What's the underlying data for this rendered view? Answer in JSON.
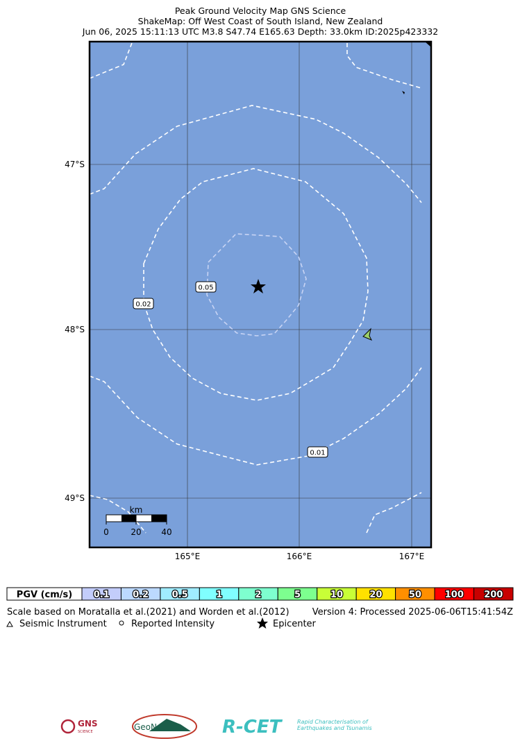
{
  "title": {
    "line1": "Peak Ground Velocity Map GNS Science",
    "line2": "ShakeMap: Off West Coast of South Island, New Zealand",
    "line3": "Jun 06, 2025 15:11:13 UTC M3.8 S47.74 E165.63 Depth: 33.0km ID:2025p423332"
  },
  "map": {
    "lat_labels": [
      "47°S",
      "48°S",
      "49°S"
    ],
    "lon_labels": [
      "165°E",
      "166°E",
      "167°E"
    ],
    "contour_labels": [
      "0.05",
      "0.02",
      "0.01"
    ],
    "scale_bar": {
      "unit": "km",
      "labels": [
        "0",
        "20",
        "40"
      ]
    }
  },
  "legend": {
    "title": "PGV (cm/s)",
    "bins": [
      {
        "label": "0.1",
        "color": "#c3cdfb"
      },
      {
        "label": "0.2",
        "color": "#bcd9ff"
      },
      {
        "label": "0.5",
        "color": "#a0ecff"
      },
      {
        "label": "1",
        "color": "#80ffff"
      },
      {
        "label": "2",
        "color": "#7effcf"
      },
      {
        "label": "5",
        "color": "#7dff8f"
      },
      {
        "label": "10",
        "color": "#c8ff37"
      },
      {
        "label": "20",
        "color": "#ffe100"
      },
      {
        "label": "50",
        "color": "#ff8f00"
      },
      {
        "label": "100",
        "color": "#ff0000"
      },
      {
        "label": "200",
        "color": "#c80000"
      }
    ]
  },
  "notes": {
    "reference": "Scale based on Moratalla et al.(2021) and Worden et al.(2012)",
    "version": "Version 4: Processed 2025-06-06T15:41:54Z",
    "symbols": [
      "Seismic Instrument",
      "Reported Intensity",
      "Epicenter"
    ]
  },
  "logos": {
    "gns": "GNS",
    "gns_sub": "SCIENCE",
    "geonet": "GeoNet",
    "rcet": "R-CET",
    "rcet_sub": "Rapid Characterisation of Earthquakes and Tsunamis"
  }
}
